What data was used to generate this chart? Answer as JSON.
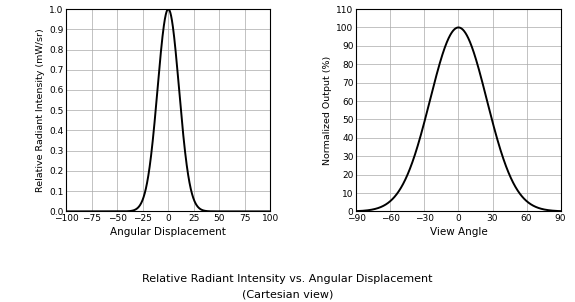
{
  "left_chart": {
    "xlabel": "Angular Displacement",
    "ylabel": "Relative Radiant Intensity (mW/sr)",
    "xlim": [
      -100,
      100
    ],
    "ylim": [
      0,
      1.0
    ],
    "xticks": [
      -100,
      -75,
      -50,
      -25,
      0,
      25,
      50,
      75,
      100
    ],
    "yticks": [
      0,
      0.1,
      0.2,
      0.3,
      0.4,
      0.5,
      0.6,
      0.7,
      0.8,
      0.9,
      1.0
    ],
    "curve_sigma": 10.5,
    "curve_color": "#000000"
  },
  "right_chart": {
    "xlabel": "View Angle",
    "ylabel": "Normalized Output (%)",
    "xlim": [
      -90,
      90
    ],
    "ylim": [
      0,
      110
    ],
    "xticks": [
      -90,
      -60,
      -30,
      0,
      30,
      60,
      90
    ],
    "yticks": [
      0,
      10,
      20,
      30,
      40,
      50,
      60,
      70,
      80,
      90,
      100,
      110
    ],
    "curve_sigma": 25.0,
    "curve_color": "#000000"
  },
  "figure_title_line1": "Relative Radiant Intensity vs. Angular Displacement",
  "figure_title_line2": "(Cartesian view)",
  "background_color": "#ffffff",
  "grid_color": "#aaaaaa",
  "grid_linewidth": 0.5,
  "spine_linewidth": 0.8,
  "curve_linewidth": 1.4,
  "xlabel_fontsize": 7.5,
  "ylabel_fontsize": 6.8,
  "tick_labelsize": 6.5,
  "title_fontsize": 8.0
}
